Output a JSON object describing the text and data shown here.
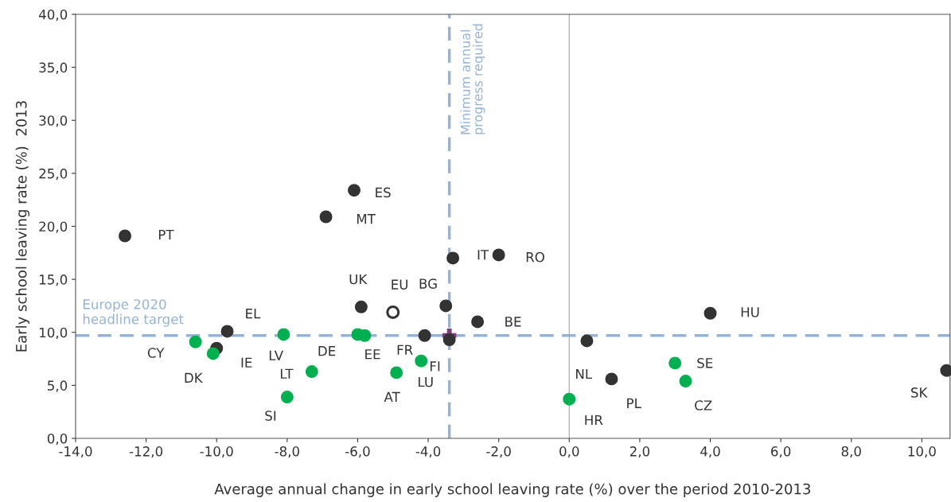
{
  "chart_data": {
    "type": "scatter",
    "xlabel": "Average annual change in early school leaving rate (%) over the period 2010-2013",
    "ylabel": "Early school leaving rate (%)  2013",
    "xlim": [
      -14,
      10.8
    ],
    "ylim": [
      0,
      40
    ],
    "xticks": [
      {
        "value": -14,
        "label": "-14,0"
      },
      {
        "value": -12,
        "label": "-12,0"
      },
      {
        "value": -10,
        "label": "-10,0"
      },
      {
        "value": -8,
        "label": "-8,0"
      },
      {
        "value": -6,
        "label": "-6,0"
      },
      {
        "value": -4,
        "label": "-4,0"
      },
      {
        "value": -2,
        "label": "-2,0"
      },
      {
        "value": 0,
        "label": "0,0"
      },
      {
        "value": 2,
        "label": "2,0"
      },
      {
        "value": 4,
        "label": "4,0"
      },
      {
        "value": 6,
        "label": "6,0"
      },
      {
        "value": 8,
        "label": "8,0"
      },
      {
        "value": 10,
        "label": "10,0"
      }
    ],
    "yticks": [
      {
        "value": 0,
        "label": "0,0"
      },
      {
        "value": 5,
        "label": "5,0"
      },
      {
        "value": 10,
        "label": "10,0"
      },
      {
        "value": 15,
        "label": "15,0"
      },
      {
        "value": 20,
        "label": "20,0"
      },
      {
        "value": 25,
        "label": "25,0"
      },
      {
        "value": 30,
        "label": "30,0"
      },
      {
        "value": 35,
        "label": "35,0"
      },
      {
        "value": 40,
        "label": "40,0"
      }
    ],
    "grid": false,
    "marker": "circle",
    "series": [
      {
        "color": "#333333",
        "x": [
          -12.6,
          -6.1,
          -6.9,
          -3.3,
          -2.0,
          -5.9,
          -3.5,
          -2.6,
          4.0,
          -9.7,
          -10.0,
          -4.1,
          -3.4,
          0.5,
          1.2,
          10.7
        ],
        "values": [
          19.1,
          23.4,
          20.9,
          17.0,
          17.3,
          12.4,
          12.5,
          11.0,
          11.8,
          10.1,
          8.5,
          9.7,
          9.3,
          9.2,
          5.6,
          6.4
        ]
      },
      {
        "color": "#00b050",
        "x": [
          -10.6,
          -10.1,
          -8.1,
          -6.0,
          -5.8,
          -7.3,
          -8.0,
          -4.9,
          -4.2,
          0.0,
          3.0,
          3.3
        ],
        "values": [
          9.1,
          8.0,
          9.8,
          9.8,
          9.7,
          6.3,
          3.9,
          6.2,
          7.3,
          3.7,
          7.1,
          5.4
        ]
      },
      {
        "color": "#333333",
        "marker": "circle",
        "x": [
          -5.0
        ],
        "values": [
          11.9
        ]
      },
      {
        "color": "#7f3f7f",
        "marker": "cross",
        "x": [
          -3.4
        ],
        "values": [
          9.7
        ]
      }
    ],
    "ref_lines": [
      {
        "axis": "y",
        "value": 9.7,
        "label": "Europe 2020\nheadline target",
        "color": "#95b3d7",
        "line_style": "dashed"
      },
      {
        "axis": "x",
        "value": -3.4,
        "label": "Minimum annual\nprogress required",
        "color": "#95b3d7",
        "line_style": "dashed"
      },
      {
        "axis": "x",
        "value": 0,
        "color": "#a6a6a6",
        "line_style": "solid"
      }
    ],
    "annotations": [
      {
        "text": "PT",
        "x": -12.6,
        "y": 19.1
      },
      {
        "text": "ES",
        "x": -6.1,
        "y": 23.4
      },
      {
        "text": "MT",
        "x": -6.9,
        "y": 20.9
      },
      {
        "text": "IT",
        "x": -3.3,
        "y": 17.0
      },
      {
        "text": "RO",
        "x": -2.0,
        "y": 17.3
      },
      {
        "text": "UK",
        "x": -5.9,
        "y": 12.4
      },
      {
        "text": "EU",
        "x": -5.0,
        "y": 11.9
      },
      {
        "text": "BG",
        "x": -3.5,
        "y": 12.5
      },
      {
        "text": "BE",
        "x": -2.6,
        "y": 11.0
      },
      {
        "text": "HU",
        "x": 4.0,
        "y": 11.8
      },
      {
        "text": "EL",
        "x": -9.7,
        "y": 10.1
      },
      {
        "text": "CY",
        "x": -10.6,
        "y": 9.1
      },
      {
        "text": "IE",
        "x": -10.0,
        "y": 8.5
      },
      {
        "text": "DK",
        "x": -10.1,
        "y": 8.0
      },
      {
        "text": "LV",
        "x": -8.1,
        "y": 9.8
      },
      {
        "text": "DE",
        "x": -6.0,
        "y": 9.8
      },
      {
        "text": "EE",
        "x": -5.8,
        "y": 9.7
      },
      {
        "text": "FR",
        "x": -4.1,
        "y": 9.7
      },
      {
        "text": "FI",
        "x": -3.4,
        "y": 9.3
      },
      {
        "text": "LT",
        "x": -7.3,
        "y": 6.3
      },
      {
        "text": "SI",
        "x": -8.0,
        "y": 3.9
      },
      {
        "text": "AT",
        "x": -4.9,
        "y": 6.2
      },
      {
        "text": "LU",
        "x": -4.2,
        "y": 7.3
      },
      {
        "text": "HR",
        "x": 0.0,
        "y": 3.7
      },
      {
        "text": "NL",
        "x": 0.5,
        "y": 9.2
      },
      {
        "text": "PL",
        "x": 1.2,
        "y": 5.6
      },
      {
        "text": "SE",
        "x": 3.0,
        "y": 7.1
      },
      {
        "text": "CZ",
        "x": 3.3,
        "y": 5.4
      },
      {
        "text": "SK",
        "x": 10.7,
        "y": 6.4
      }
    ]
  }
}
